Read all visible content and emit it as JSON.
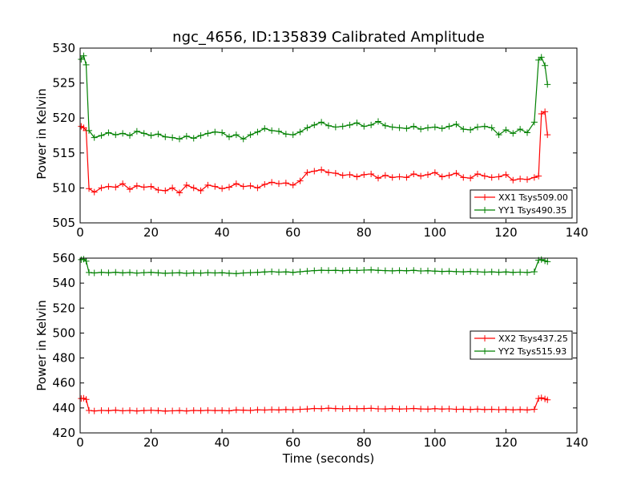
{
  "chart_data": [
    {
      "type": "line",
      "title": "ngc_4656, ID:135839 Calibrated Amplitude",
      "xlabel": "",
      "ylabel": "Power in Kelvin",
      "xlim": [
        0,
        140
      ],
      "ylim": [
        505,
        530
      ],
      "xticks": [
        "0",
        "20",
        "40",
        "60",
        "80",
        "100",
        "120",
        "140"
      ],
      "yticks": [
        "505",
        "510",
        "515",
        "520",
        "525",
        "530"
      ],
      "grid": false,
      "legend_position": "lower-right",
      "series": [
        {
          "name": "XX1 Tsys509.00",
          "color": "#ff0000",
          "marker": "+",
          "x": [
            0.3,
            1,
            1.7,
            2.5,
            4,
            6,
            8,
            10,
            12,
            14,
            16,
            18,
            20,
            22,
            24,
            26,
            28,
            30,
            32,
            34,
            36,
            38,
            40,
            42,
            44,
            46,
            48,
            50,
            52,
            54,
            56,
            58,
            60,
            62,
            64,
            66,
            68,
            70,
            72,
            74,
            76,
            78,
            80,
            82,
            84,
            86,
            88,
            90,
            92,
            94,
            96,
            98,
            100,
            102,
            104,
            106,
            108,
            110,
            112,
            114,
            116,
            118,
            120,
            122,
            124,
            126,
            128,
            129.2,
            130,
            131,
            131.7
          ],
          "y": [
            518.8,
            518.6,
            518.2,
            509.9,
            509.4,
            510.0,
            510.2,
            510.1,
            510.6,
            509.8,
            510.3,
            510.1,
            510.2,
            509.7,
            509.6,
            510.0,
            509.3,
            510.4,
            510.0,
            509.6,
            510.4,
            510.2,
            509.9,
            510.1,
            510.6,
            510.2,
            510.3,
            510.0,
            510.5,
            510.8,
            510.6,
            510.7,
            510.4,
            511.0,
            512.2,
            512.4,
            512.6,
            512.2,
            512.1,
            511.8,
            511.9,
            511.6,
            511.9,
            512.0,
            511.4,
            511.8,
            511.5,
            511.6,
            511.5,
            512.0,
            511.7,
            511.9,
            512.2,
            511.6,
            511.8,
            512.1,
            511.5,
            511.4,
            512.0,
            511.7,
            511.5,
            511.6,
            511.9,
            511.1,
            511.3,
            511.2,
            511.5,
            511.7,
            520.6,
            520.9,
            517.6
          ]
        },
        {
          "name": "YY1 Tsys490.35",
          "color": "#008000",
          "marker": "+",
          "x": [
            0.3,
            1,
            1.7,
            2.5,
            4,
            6,
            8,
            10,
            12,
            14,
            16,
            18,
            20,
            22,
            24,
            26,
            28,
            30,
            32,
            34,
            36,
            38,
            40,
            42,
            44,
            46,
            48,
            50,
            52,
            54,
            56,
            58,
            60,
            62,
            64,
            66,
            68,
            70,
            72,
            74,
            76,
            78,
            80,
            82,
            84,
            86,
            88,
            90,
            92,
            94,
            96,
            98,
            100,
            102,
            104,
            106,
            108,
            110,
            112,
            114,
            116,
            118,
            120,
            122,
            124,
            126,
            128,
            129.2,
            130,
            131,
            131.7
          ],
          "y": [
            528.4,
            528.9,
            527.6,
            518.2,
            517.2,
            517.5,
            517.9,
            517.6,
            517.8,
            517.5,
            518.1,
            517.8,
            517.5,
            517.7,
            517.3,
            517.2,
            517.0,
            517.4,
            517.1,
            517.5,
            517.8,
            518.0,
            517.9,
            517.3,
            517.6,
            517.0,
            517.6,
            518.0,
            518.5,
            518.2,
            518.1,
            517.7,
            517.6,
            518.0,
            518.6,
            519.0,
            519.4,
            518.9,
            518.7,
            518.8,
            519.0,
            519.3,
            518.8,
            519.0,
            519.5,
            518.9,
            518.7,
            518.6,
            518.5,
            518.8,
            518.4,
            518.6,
            518.7,
            518.5,
            518.8,
            519.1,
            518.4,
            518.3,
            518.7,
            518.8,
            518.6,
            517.6,
            518.3,
            517.8,
            518.4,
            517.9,
            519.4,
            528.3,
            528.7,
            527.5,
            524.8
          ]
        }
      ]
    },
    {
      "type": "line",
      "title": "",
      "xlabel": "Time (seconds)",
      "ylabel": "Power in Kelvin",
      "xlim": [
        0,
        140
      ],
      "ylim": [
        420,
        560
      ],
      "xticks": [
        "0",
        "20",
        "40",
        "60",
        "80",
        "100",
        "120",
        "140"
      ],
      "yticks": [
        "420",
        "440",
        "460",
        "480",
        "500",
        "520",
        "540",
        "560"
      ],
      "grid": false,
      "legend_position": "center-right",
      "series": [
        {
          "name": "XX2 Tsys437.25",
          "color": "#ff0000",
          "marker": "+",
          "x": [
            0.3,
            1,
            1.7,
            2.5,
            4,
            6,
            8,
            10,
            12,
            14,
            16,
            18,
            20,
            22,
            24,
            26,
            28,
            30,
            32,
            34,
            36,
            38,
            40,
            42,
            44,
            46,
            48,
            50,
            52,
            54,
            56,
            58,
            60,
            62,
            64,
            66,
            68,
            70,
            72,
            74,
            76,
            78,
            80,
            82,
            84,
            86,
            88,
            90,
            92,
            94,
            96,
            98,
            100,
            102,
            104,
            106,
            108,
            110,
            112,
            114,
            116,
            118,
            120,
            122,
            124,
            126,
            128,
            129.2,
            130,
            131,
            131.7
          ],
          "y": [
            447.5,
            447.8,
            446.8,
            438.0,
            437.6,
            438.0,
            437.8,
            438.2,
            437.7,
            438.0,
            437.6,
            437.9,
            438.1,
            437.8,
            437.5,
            437.7,
            437.9,
            437.6,
            438.0,
            437.8,
            438.1,
            437.9,
            438.0,
            437.7,
            438.4,
            438.2,
            438.0,
            438.5,
            438.3,
            438.6,
            438.4,
            438.7,
            438.5,
            438.9,
            439.1,
            439.6,
            439.4,
            439.8,
            439.5,
            439.3,
            439.6,
            439.4,
            439.5,
            439.7,
            439.3,
            439.2,
            439.5,
            439.1,
            439.3,
            439.6,
            439.2,
            439.0,
            439.4,
            439.1,
            439.3,
            438.9,
            439.0,
            438.8,
            439.0,
            438.7,
            438.9,
            438.6,
            438.8,
            438.5,
            438.7,
            438.4,
            438.9,
            447.5,
            448.1,
            447.2,
            446.5
          ]
        },
        {
          "name": "YY2 Tsys515.93",
          "color": "#008000",
          "marker": "+",
          "x": [
            0.3,
            1,
            1.7,
            2.5,
            4,
            6,
            8,
            10,
            12,
            14,
            16,
            18,
            20,
            22,
            24,
            26,
            28,
            30,
            32,
            34,
            36,
            38,
            40,
            42,
            44,
            46,
            48,
            50,
            52,
            54,
            56,
            58,
            60,
            62,
            64,
            66,
            68,
            70,
            72,
            74,
            76,
            78,
            80,
            82,
            84,
            86,
            88,
            90,
            92,
            94,
            96,
            98,
            100,
            102,
            104,
            106,
            108,
            110,
            112,
            114,
            116,
            118,
            120,
            122,
            124,
            126,
            128,
            129.2,
            130,
            131,
            131.7
          ],
          "y": [
            558.8,
            559.2,
            557.6,
            548.5,
            548.1,
            548.6,
            548.3,
            548.7,
            548.2,
            548.5,
            548.0,
            548.4,
            548.6,
            548.2,
            547.9,
            548.1,
            548.3,
            547.8,
            548.2,
            548.0,
            548.4,
            548.1,
            548.3,
            547.9,
            547.6,
            548.1,
            548.4,
            548.6,
            548.9,
            549.2,
            548.8,
            549.0,
            548.6,
            549.1,
            549.6,
            550.0,
            550.3,
            550.1,
            550.2,
            549.9,
            550.3,
            550.1,
            550.4,
            550.6,
            550.2,
            550.0,
            549.8,
            550.1,
            549.9,
            550.2,
            549.7,
            549.9,
            549.6,
            549.3,
            549.5,
            549.2,
            549.0,
            549.3,
            549.1,
            548.8,
            549.0,
            548.7,
            548.9,
            548.6,
            548.8,
            548.5,
            549.1,
            558.4,
            558.9,
            557.8,
            557.2
          ]
        }
      ]
    }
  ]
}
